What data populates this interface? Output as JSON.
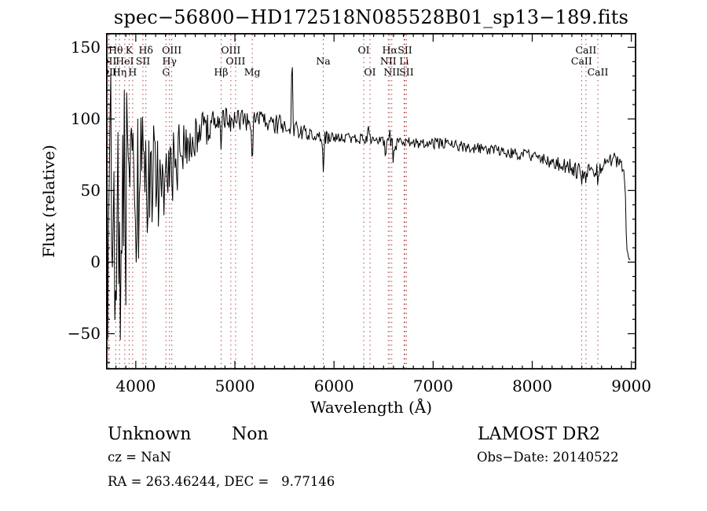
{
  "title": "spec−56800−HD172518N085528B01_sp13−189.fits",
  "chart_data": {
    "type": "line",
    "title": "spec−56800−HD172518N085528B01_sp13−189.fits",
    "xlabel": "Wavelength (Å)",
    "ylabel": "Flux (relative)",
    "xlim": [
      3700,
      9050
    ],
    "ylim": [
      -75,
      160
    ],
    "grid": false,
    "legend": null,
    "spectrum_color": "#000000",
    "line_marker_color": "#aa3333",
    "xticks": [
      {
        "v": 4000,
        "label": "4000"
      },
      {
        "v": 5000,
        "label": "5000"
      },
      {
        "v": 6000,
        "label": "6000"
      },
      {
        "v": 7000,
        "label": "7000"
      },
      {
        "v": 8000,
        "label": "8000"
      },
      {
        "v": 9000,
        "label": "9000"
      }
    ],
    "x_minor_step": 100,
    "yticks": [
      {
        "v": 150,
        "label": "150"
      },
      {
        "v": 100,
        "label": "100"
      },
      {
        "v": 50,
        "label": "50"
      },
      {
        "v": 0,
        "label": "0"
      },
      {
        "v": -50,
        "label": "−50"
      }
    ],
    "y_minor_step": 10,
    "series": [
      {
        "name": "flux",
        "sample_step": 8,
        "envelope": [
          [
            3700,
            40,
            112
          ],
          [
            3740,
            35,
            110
          ],
          [
            3780,
            32,
            102
          ],
          [
            3820,
            27,
            95
          ],
          [
            3860,
            32,
            88
          ],
          [
            3900,
            42,
            82
          ],
          [
            3940,
            45,
            74
          ],
          [
            3980,
            48,
            62
          ],
          [
            4030,
            52,
            52
          ],
          [
            4080,
            55,
            46
          ],
          [
            4130,
            56,
            41
          ],
          [
            4180,
            58,
            40
          ],
          [
            4230,
            57,
            33
          ],
          [
            4290,
            60,
            30
          ],
          [
            4350,
            65,
            29
          ],
          [
            4410,
            71,
            25
          ],
          [
            4470,
            78,
            21
          ],
          [
            4530,
            83,
            18
          ],
          [
            4590,
            87,
            17
          ],
          [
            4650,
            90,
            16
          ],
          [
            4710,
            93,
            14
          ],
          [
            4770,
            95,
            12
          ],
          [
            4830,
            96,
            11
          ],
          [
            4890,
            98,
            10
          ],
          [
            4950,
            100,
            9
          ],
          [
            5050,
            100,
            8
          ],
          [
            5150,
            98,
            8
          ],
          [
            5250,
            99,
            7
          ],
          [
            5350,
            98,
            7
          ],
          [
            5450,
            96,
            7
          ],
          [
            5550,
            95,
            6
          ],
          [
            5650,
            91,
            6
          ],
          [
            5750,
            90,
            5
          ],
          [
            5850,
            88,
            5
          ],
          [
            5950,
            87,
            5
          ],
          [
            6050,
            86,
            4
          ],
          [
            6150,
            86,
            4
          ],
          [
            6250,
            86,
            4
          ],
          [
            6340,
            88,
            5
          ],
          [
            6430,
            85,
            4
          ],
          [
            6530,
            83,
            5
          ],
          [
            6620,
            82,
            5
          ],
          [
            6710,
            84,
            4
          ],
          [
            6800,
            84,
            4
          ],
          [
            6900,
            83,
            4
          ],
          [
            7000,
            83,
            4
          ],
          [
            7100,
            83,
            4
          ],
          [
            7200,
            82,
            4
          ],
          [
            7300,
            81,
            4
          ],
          [
            7400,
            80,
            4
          ],
          [
            7500,
            79,
            4
          ],
          [
            7600,
            78,
            4
          ],
          [
            7700,
            77,
            4
          ],
          [
            7800,
            76,
            4
          ],
          [
            7900,
            75,
            4
          ],
          [
            8000,
            74,
            4
          ],
          [
            8100,
            72,
            4
          ],
          [
            8200,
            70,
            5
          ],
          [
            8300,
            68,
            5
          ],
          [
            8400,
            66,
            6
          ],
          [
            8480,
            64,
            6
          ],
          [
            8560,
            63,
            6
          ],
          [
            8640,
            64,
            7
          ],
          [
            8720,
            66,
            6
          ],
          [
            8800,
            70,
            6
          ],
          [
            8860,
            72,
            6
          ],
          [
            8900,
            68,
            4
          ],
          [
            8928,
            62,
            3
          ],
          [
            8940,
            45,
            3
          ],
          [
            8952,
            8,
            3
          ],
          [
            8970,
            3,
            2
          ],
          [
            8990,
            2,
            1
          ]
        ],
        "features": [
          [
            5577,
            13,
            150
          ],
          [
            5892,
            14,
            63
          ],
          [
            5175,
            12,
            64
          ],
          [
            4861,
            10,
            77
          ],
          [
            6350,
            10,
            96
          ],
          [
            6520,
            10,
            71
          ],
          [
            6563,
            8,
            94
          ],
          [
            6598,
            9,
            66
          ],
          [
            8450,
            8,
            55
          ],
          [
            8498,
            10,
            52
          ],
          [
            8542,
            9,
            53
          ],
          [
            8662,
            10,
            52
          ]
        ]
      }
    ],
    "spectral_lines": [
      {
        "label": "OII",
        "wavelength": 3726,
        "row": 2
      },
      {
        "label": "OII",
        "wavelength": 3729,
        "row": 3
      },
      {
        "label": "Hθ",
        "wavelength": 3798,
        "row": 1
      },
      {
        "label": "Hη",
        "wavelength": 3835,
        "row": 3
      },
      {
        "label": "HeI",
        "wavelength": 3889,
        "row": 2
      },
      {
        "label": "K",
        "wavelength": 3933,
        "row": 1
      },
      {
        "label": "H",
        "wavelength": 3968,
        "row": 3
      },
      {
        "label": "SII",
        "wavelength": 4072,
        "row": 2
      },
      {
        "label": "Hδ",
        "wavelength": 4102,
        "row": 1
      },
      {
        "label": "G",
        "wavelength": 4305,
        "row": 3
      },
      {
        "label": "Hγ",
        "wavelength": 4340,
        "row": 2
      },
      {
        "label": "OIII",
        "wavelength": 4363,
        "row": 1
      },
      {
        "label": "Hβ",
        "wavelength": 4861,
        "row": 3
      },
      {
        "label": "OIII",
        "wavelength": 4959,
        "row": 1
      },
      {
        "label": "OIII",
        "wavelength": 5007,
        "row": 2
      },
      {
        "label": "Mg",
        "wavelength": 5175,
        "row": 3
      },
      {
        "label": "Na",
        "wavelength": 5892,
        "row": 2
      },
      {
        "label": "OI",
        "wavelength": 6300,
        "row": 1
      },
      {
        "label": "OI",
        "wavelength": 6363,
        "row": 3
      },
      {
        "label": "NII",
        "wavelength": 6548,
        "row": 2
      },
      {
        "label": "Hα",
        "wavelength": 6563,
        "row": 1
      },
      {
        "label": "NII",
        "wavelength": 6583,
        "row": 3
      },
      {
        "label": "Li",
        "wavelength": 6707,
        "row": 2
      },
      {
        "label": "SII",
        "wavelength": 6716,
        "row": 1
      },
      {
        "label": "SII",
        "wavelength": 6731,
        "row": 3
      },
      {
        "label": "CaII",
        "wavelength": 8498,
        "row": 2
      },
      {
        "label": "CaII",
        "wavelength": 8542,
        "row": 1
      },
      {
        "label": "CaII",
        "wavelength": 8662,
        "row": 3
      }
    ]
  },
  "footer": {
    "class_label": "Unknown",
    "subclass_label": "Non",
    "cz_line": "cz = NaN",
    "radec_line": "RA = 263.46244, DEC =   9.77146",
    "survey": "LAMOST DR2",
    "obs_date_line": "Obs−Date: 20140522"
  }
}
